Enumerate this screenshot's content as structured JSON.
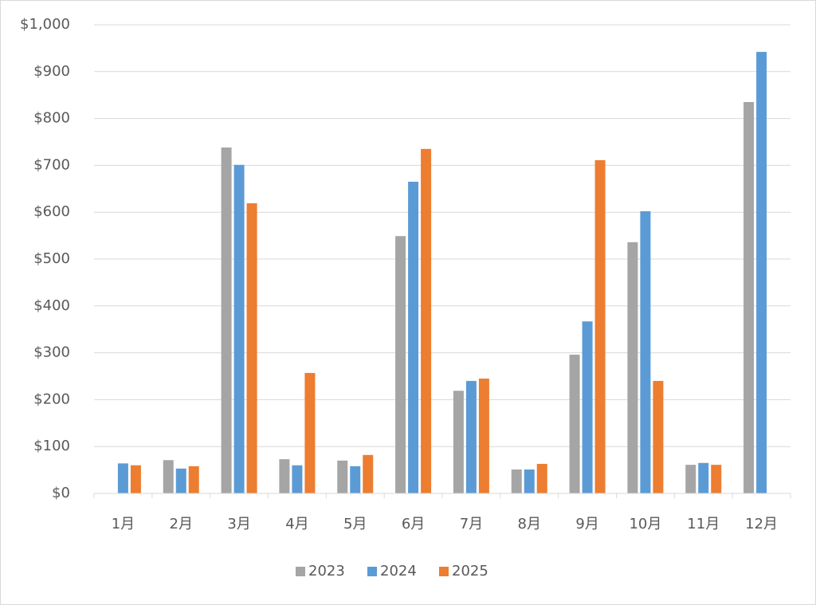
{
  "chart_data": {
    "type": "bar",
    "categories": [
      "1月",
      "2月",
      "3月",
      "4月",
      "5月",
      "6月",
      "7月",
      "8月",
      "9月",
      "10月",
      "11月",
      "12月"
    ],
    "series": [
      {
        "name": "2023",
        "color": "#a5a5a5",
        "values": [
          null,
          71,
          738,
          73,
          70,
          549,
          219,
          51,
          296,
          536,
          61,
          835
        ]
      },
      {
        "name": "2024",
        "color": "#5b9bd5",
        "values": [
          64,
          53,
          701,
          60,
          58,
          665,
          240,
          51,
          367,
          602,
          65,
          942
        ]
      },
      {
        "name": "2025",
        "color": "#ed7d31",
        "values": [
          60,
          58,
          619,
          257,
          82,
          735,
          245,
          63,
          711,
          240,
          61,
          null
        ]
      }
    ],
    "ylim": [
      0,
      1000
    ],
    "yticks": [
      {
        "value": 0,
        "label": "$0"
      },
      {
        "value": 100,
        "label": "$100"
      },
      {
        "value": 200,
        "label": "$200"
      },
      {
        "value": 300,
        "label": "$300"
      },
      {
        "value": 400,
        "label": "$400"
      },
      {
        "value": 500,
        "label": "$500"
      },
      {
        "value": 600,
        "label": "$600"
      },
      {
        "value": 700,
        "label": "$700"
      },
      {
        "value": 800,
        "label": "$800"
      },
      {
        "value": 900,
        "label": "$900"
      },
      {
        "value": 1000,
        "label": "$1,000"
      }
    ],
    "grid": true,
    "legend": "bottom"
  }
}
